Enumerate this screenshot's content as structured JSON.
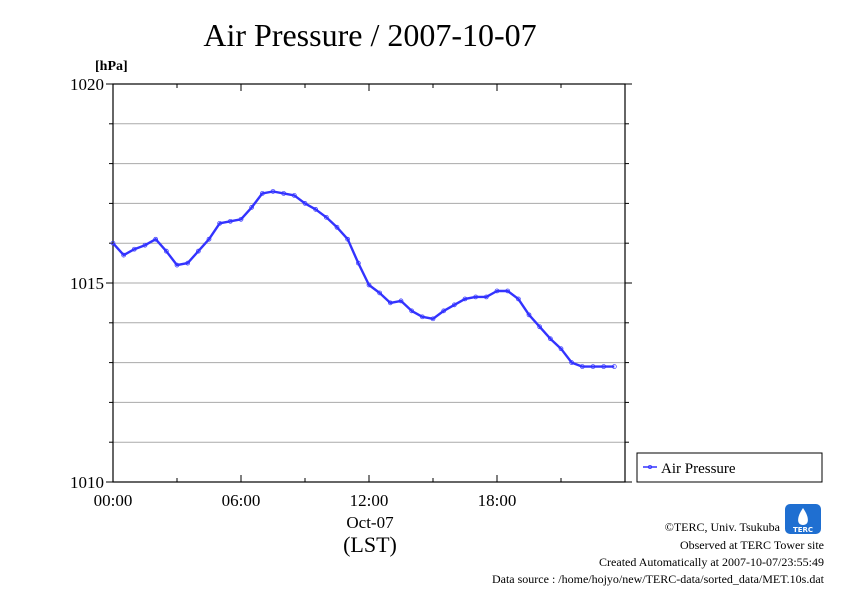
{
  "chart_data": {
    "type": "line",
    "title": "Air Pressure / 2007-10-07",
    "ylabel": "[hPa]",
    "ylim": [
      1010,
      1020
    ],
    "y_ticks": [
      1010,
      1015,
      1020
    ],
    "y_tick_labels": [
      "1010",
      "1015",
      "1020"
    ],
    "y_minor_step": 1,
    "xlim": [
      0,
      24
    ],
    "x_ticks": [
      0,
      6,
      12,
      18
    ],
    "x_tick_labels": [
      "00:00",
      "06:00",
      "12:00",
      "18:00"
    ],
    "x_date_label": "Oct-07",
    "xlabel": "(LST)",
    "grid": true,
    "legend_position": "right",
    "series": [
      {
        "name": "Air Pressure",
        "color": "#3333ff",
        "x": [
          0,
          0.5,
          1,
          1.5,
          2,
          2.5,
          3,
          3.5,
          4,
          4.5,
          5,
          5.5,
          6,
          6.5,
          7,
          7.5,
          8,
          8.5,
          9,
          9.5,
          10,
          10.5,
          11,
          11.5,
          12,
          12.5,
          13,
          13.5,
          14,
          14.5,
          15,
          15.5,
          16,
          16.5,
          17,
          17.5,
          18,
          18.5,
          19,
          19.5,
          20,
          20.5,
          21,
          21.5,
          22,
          22.5,
          23,
          23.5
        ],
        "y": [
          1016.0,
          1015.7,
          1015.85,
          1015.95,
          1016.1,
          1015.8,
          1015.45,
          1015.5,
          1015.8,
          1016.1,
          1016.5,
          1016.55,
          1016.6,
          1016.9,
          1017.25,
          1017.3,
          1017.25,
          1017.2,
          1017.0,
          1016.85,
          1016.65,
          1016.4,
          1016.1,
          1015.5,
          1014.95,
          1014.75,
          1014.5,
          1014.55,
          1014.3,
          1014.15,
          1014.1,
          1014.3,
          1014.45,
          1014.6,
          1014.65,
          1014.65,
          1014.8,
          1014.8,
          1014.6,
          1014.2,
          1013.9,
          1013.6,
          1013.35,
          1013.0,
          1012.9,
          1012.9,
          1012.9,
          1012.9
        ]
      }
    ]
  },
  "footer": {
    "credit": "©TERC, Univ. Tsukuba",
    "site": "Observed at TERC Tower site",
    "created": "Created Automatically at 2007-10-07/23:55:49",
    "source": "Data source : /home/hojyo/new/TERC-data/sorted_data/MET.10s.dat",
    "logo_text": "TERC"
  }
}
